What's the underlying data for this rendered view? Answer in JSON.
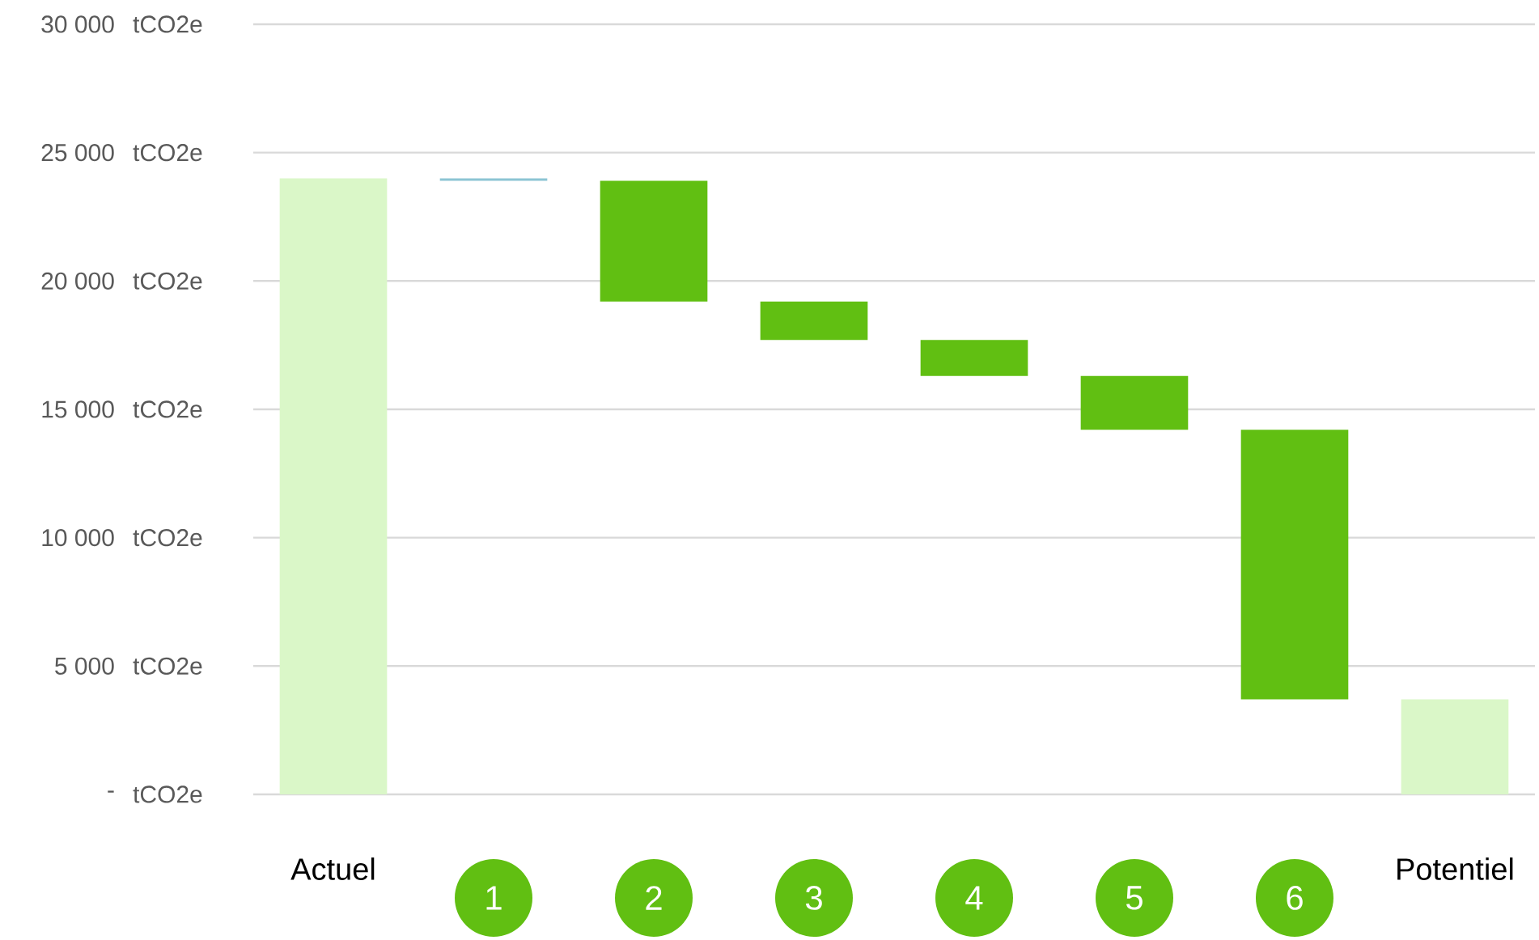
{
  "chart_data": {
    "type": "bar",
    "categories": [
      "Actuel",
      "1",
      "2",
      "3",
      "4",
      "5",
      "6",
      "Potentiel"
    ],
    "values": [
      24000,
      -100,
      -4700,
      -1500,
      -1400,
      -2100,
      -10500,
      3700
    ],
    "base": [
      0,
      24000,
      23900,
      19200,
      17700,
      16300,
      14200,
      0
    ],
    "colors": [
      "#daf7c8",
      "#8cc4d4",
      "#61bf12",
      "#61bf12",
      "#61bf12",
      "#61bf12",
      "#61bf12",
      "#daf7c8"
    ],
    "ylim": [
      0,
      30000
    ],
    "ylabel": "tCO2e",
    "yticks": [
      {
        "value": 0,
        "label": "-"
      },
      {
        "value": 5000,
        "label": "5 000"
      },
      {
        "value": 10000,
        "label": "10 000"
      },
      {
        "value": 15000,
        "label": "15 000"
      },
      {
        "value": 20000,
        "label": "20 000"
      },
      {
        "value": 25000,
        "label": "25 000"
      },
      {
        "value": 30000,
        "label": "30 000"
      }
    ],
    "grid": "y"
  }
}
